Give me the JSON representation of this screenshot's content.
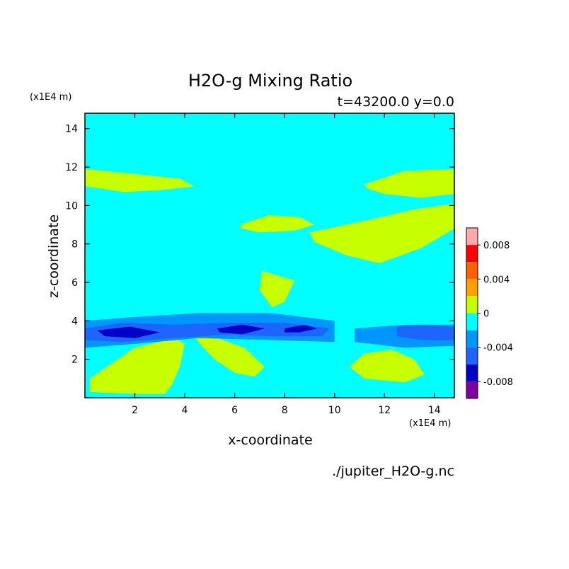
{
  "chart_data": {
    "type": "heatmap",
    "title": "H2O-g Mixing Ratio",
    "subtitle": "t=43200.0 y=0.0",
    "xlabel": "x-coordinate",
    "ylabel": "z-coordinate",
    "x_unit": "(x1E4 m)",
    "z_unit": "(x1E4 m)",
    "source_file": "./jupiter_H2O-g.nc",
    "xlim": [
      0,
      14.8
    ],
    "ylim": [
      0,
      14.8
    ],
    "x_ticks": [
      2,
      4,
      6,
      8,
      10,
      12,
      14
    ],
    "y_ticks": [
      2,
      4,
      6,
      8,
      10,
      12,
      14
    ],
    "grid": false,
    "background_color": "#00ffff",
    "colorbar": {
      "levels": [
        -0.01,
        -0.008,
        -0.006,
        -0.004,
        -0.002,
        0,
        0.002,
        0.004,
        0.006,
        0.008,
        0.01
      ],
      "colors": [
        "#7f00a0",
        "#0000c8",
        "#1e64ff",
        "#0096ff",
        "#00ffff",
        "#c8ff00",
        "#ffa000",
        "#ff6000",
        "#ff0000",
        "#ffaaaa"
      ],
      "tick_labels": [
        {
          "value": 0.008,
          "label": "0.008"
        },
        {
          "value": 0.004,
          "label": "0.004"
        },
        {
          "value": 0,
          "label": "0"
        },
        {
          "value": -0.004,
          "label": "-0.004"
        },
        {
          "value": -0.008,
          "label": "-0.008"
        }
      ]
    },
    "regions": [
      {
        "level": "0 to 0.002",
        "color": "#c8ff00",
        "x": [
          0,
          1.6,
          3.8,
          4.4,
          3.0,
          1.6,
          0
        ],
        "z": [
          11.9,
          11.7,
          11.4,
          11.0,
          10.8,
          10.7,
          11.0
        ]
      },
      {
        "level": "0 to 0.002",
        "color": "#c8ff00",
        "x": [
          6.2,
          7.4,
          8.6,
          9.2,
          8.4,
          7.0,
          6.3
        ],
        "z": [
          9.0,
          9.5,
          9.4,
          9.0,
          8.7,
          8.6,
          8.8
        ]
      },
      {
        "level": "0 to 0.002",
        "color": "#c8ff00",
        "x": [
          9.0,
          11.2,
          13.2,
          14.8,
          14.8,
          13.5,
          11.8,
          10.5,
          9.2
        ],
        "z": [
          8.6,
          9.2,
          9.8,
          10.1,
          8.8,
          7.8,
          7.0,
          7.4,
          8.1
        ]
      },
      {
        "level": "0 to 0.002",
        "color": "#c8ff00",
        "x": [
          11.2,
          12.8,
          14.8,
          14.8,
          13.5,
          12.0,
          11.3
        ],
        "z": [
          11.1,
          11.8,
          11.9,
          10.6,
          10.4,
          10.6,
          10.9
        ]
      },
      {
        "level": "0 to 0.002",
        "color": "#c8ff00",
        "x": [
          7.1,
          8.4,
          8.0,
          7.5,
          7.0
        ],
        "z": [
          6.6,
          6.1,
          5.0,
          4.7,
          5.6
        ]
      },
      {
        "level": "0 to 0.002",
        "color": "#c8ff00",
        "x": [
          0.2,
          2.0,
          3.6,
          4.0,
          3.8,
          3.5,
          3.2,
          2.0,
          0.2
        ],
        "z": [
          1.0,
          2.6,
          3.1,
          2.8,
          1.6,
          0.7,
          0.2,
          0.2,
          0.3
        ]
      },
      {
        "level": "0 to 0.002",
        "color": "#c8ff00",
        "x": [
          4.4,
          5.3,
          6.4,
          7.2,
          6.8,
          6.0,
          5.2,
          4.6
        ],
        "z": [
          3.2,
          3.1,
          2.6,
          1.6,
          1.1,
          1.3,
          2.0,
          2.8
        ]
      },
      {
        "level": "0 to 0.002",
        "color": "#c8ff00",
        "x": [
          10.6,
          11.2,
          12.3,
          13.2,
          13.6,
          12.8,
          11.2
        ],
        "z": [
          1.6,
          2.3,
          2.5,
          2.0,
          1.2,
          0.8,
          1.0
        ]
      },
      {
        "level": "-0.002 to -0.004",
        "color": "#0096ff",
        "x": [
          0,
          2.0,
          4.5,
          7.5,
          10.0,
          10.0,
          7.5,
          4.5,
          2.0,
          0
        ],
        "z": [
          4.0,
          4.2,
          4.4,
          4.4,
          4.0,
          2.9,
          3.0,
          3.1,
          2.8,
          2.6
        ]
      },
      {
        "level": "-0.002 to -0.004",
        "color": "#0096ff",
        "x": [
          10.8,
          12.8,
          14.8,
          14.8,
          12.8,
          10.8
        ],
        "z": [
          3.6,
          3.8,
          3.8,
          2.7,
          2.6,
          2.9
        ]
      },
      {
        "level": "-0.004 to -0.006",
        "color": "#1e64ff",
        "x": [
          0,
          1.5,
          3.6,
          5.8,
          8.0,
          9.8,
          9.5,
          7.5,
          5.8,
          3.6,
          1.5,
          0
        ],
        "z": [
          3.6,
          3.9,
          3.8,
          3.9,
          3.9,
          3.6,
          3.2,
          3.2,
          3.3,
          3.1,
          2.9,
          3.0
        ]
      },
      {
        "level": "-0.004 to -0.006",
        "color": "#1e64ff",
        "x": [
          12.5,
          13.5,
          14.8,
          14.8,
          13.5,
          12.5
        ],
        "z": [
          3.7,
          3.8,
          3.7,
          3.0,
          3.0,
          3.2
        ]
      },
      {
        "level": "-0.006 to -0.008",
        "color": "#0000c8",
        "x": [
          0.5,
          1.8,
          3.0,
          2.0,
          0.8
        ],
        "z": [
          3.5,
          3.7,
          3.4,
          3.1,
          3.2
        ]
      },
      {
        "level": "-0.006 to -0.008",
        "color": "#0000c8",
        "x": [
          5.3,
          6.3,
          7.2,
          6.3,
          5.4
        ],
        "z": [
          3.6,
          3.8,
          3.6,
          3.3,
          3.4
        ]
      },
      {
        "level": "-0.006 to -0.008",
        "color": "#0000c8",
        "x": [
          8.0,
          8.8,
          9.3,
          8.6,
          8.0
        ],
        "z": [
          3.6,
          3.8,
          3.6,
          3.4,
          3.4
        ]
      }
    ]
  }
}
